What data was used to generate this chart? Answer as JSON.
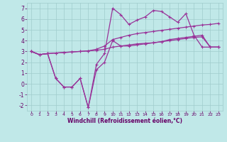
{
  "title": "",
  "xlabel": "Windchill (Refroidissement éolien,°C)",
  "ylabel": "",
  "background_color": "#c0e8e8",
  "line_color": "#993399",
  "grid_color": "#a0cccc",
  "xlim": [
    -0.5,
    23.5
  ],
  "ylim": [
    -2.5,
    7.5
  ],
  "xticks": [
    0,
    1,
    2,
    3,
    4,
    5,
    6,
    7,
    8,
    9,
    10,
    11,
    12,
    13,
    14,
    15,
    16,
    17,
    18,
    19,
    20,
    21,
    22,
    23
  ],
  "yticks": [
    -2,
    -1,
    0,
    1,
    2,
    3,
    4,
    5,
    6,
    7
  ],
  "line1_x": [
    0,
    1,
    2,
    3,
    4,
    5,
    6,
    7,
    8,
    9,
    10,
    11,
    12,
    13,
    14,
    15,
    16,
    17,
    18,
    19,
    20,
    21,
    22,
    23
  ],
  "line1_y": [
    3.0,
    2.7,
    2.8,
    2.85,
    2.9,
    2.95,
    3.0,
    3.05,
    3.1,
    3.2,
    3.4,
    3.5,
    3.6,
    3.7,
    3.75,
    3.8,
    3.9,
    4.0,
    4.1,
    4.2,
    4.3,
    4.35,
    3.4,
    3.4
  ],
  "line2_x": [
    0,
    1,
    2,
    3,
    4,
    5,
    6,
    7,
    8,
    9,
    10,
    11,
    12,
    13,
    14,
    15,
    16,
    17,
    18,
    19,
    20,
    21,
    22,
    23
  ],
  "line2_y": [
    3.0,
    2.7,
    2.8,
    2.85,
    2.9,
    2.95,
    3.0,
    3.05,
    3.2,
    3.5,
    4.1,
    4.3,
    4.5,
    4.65,
    4.75,
    4.85,
    4.95,
    5.05,
    5.15,
    5.25,
    5.35,
    5.45,
    5.5,
    5.6
  ],
  "line3_x": [
    0,
    1,
    2,
    3,
    4,
    5,
    6,
    7,
    8,
    9,
    10,
    11,
    12,
    13,
    14,
    15,
    16,
    17,
    18,
    19,
    20,
    21,
    22,
    23
  ],
  "line3_y": [
    3.0,
    2.7,
    2.8,
    0.5,
    -0.3,
    -0.3,
    0.5,
    -2.2,
    1.8,
    2.8,
    7.0,
    6.4,
    5.5,
    5.9,
    6.2,
    6.8,
    6.7,
    6.2,
    5.7,
    6.5,
    4.5,
    3.4,
    3.4,
    3.4
  ],
  "line4_x": [
    0,
    1,
    2,
    3,
    4,
    5,
    6,
    7,
    8,
    9,
    10,
    11,
    12,
    13,
    14,
    15,
    16,
    17,
    18,
    19,
    20,
    21,
    22,
    23
  ],
  "line4_y": [
    3.0,
    2.7,
    2.8,
    0.5,
    -0.3,
    -0.3,
    0.5,
    -2.2,
    1.3,
    2.0,
    4.0,
    3.5,
    3.5,
    3.6,
    3.7,
    3.8,
    3.9,
    4.1,
    4.2,
    4.3,
    4.4,
    4.5,
    3.4,
    3.4
  ]
}
